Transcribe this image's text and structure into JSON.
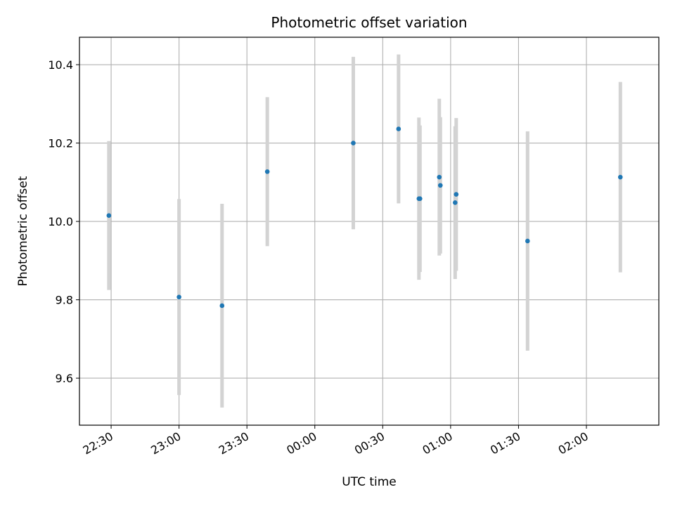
{
  "chart_data": {
    "type": "scatter",
    "title": "Photometric offset variation",
    "xlabel": "UTC time",
    "ylabel": "Photometric offset",
    "grid": true,
    "x_ticks": [
      "22:30",
      "23:00",
      "23:30",
      "00:00",
      "00:30",
      "01:00",
      "01:30",
      "02:00"
    ],
    "y_ticks": [
      "9.6",
      "9.8",
      "10.0",
      "10.2",
      "10.4"
    ],
    "xlim": [
      "22:16",
      "02:32"
    ],
    "ylim": [
      9.48,
      10.47
    ],
    "colors": {
      "point": "#1f77b4",
      "errorbar": "#d3d3d3",
      "grid": "#b0b0b0"
    },
    "points": [
      {
        "time": "22:29",
        "y": 10.015,
        "err": 0.19
      },
      {
        "time": "23:00",
        "y": 9.807,
        "err": 0.25
      },
      {
        "time": "23:19",
        "y": 9.785,
        "err": 0.26
      },
      {
        "time": "23:39",
        "y": 10.127,
        "err": 0.19
      },
      {
        "time": "00:17",
        "y": 10.2,
        "err": 0.22
      },
      {
        "time": "00:37",
        "y": 10.236,
        "err": 0.19
      },
      {
        "time": "00:46",
        "y": 10.058,
        "err": 0.207
      },
      {
        "time": "00:46",
        "y": 10.058,
        "err": 0.187
      },
      {
        "time": "00:55",
        "y": 10.113,
        "err": 0.2
      },
      {
        "time": "00:55",
        "y": 10.092,
        "err": 0.174
      },
      {
        "time": "01:02",
        "y": 10.048,
        "err": 0.195
      },
      {
        "time": "01:02",
        "y": 10.069,
        "err": 0.195
      },
      {
        "time": "01:34",
        "y": 9.95,
        "err": 0.28
      },
      {
        "time": "02:15",
        "y": 10.113,
        "err": 0.243
      }
    ]
  }
}
